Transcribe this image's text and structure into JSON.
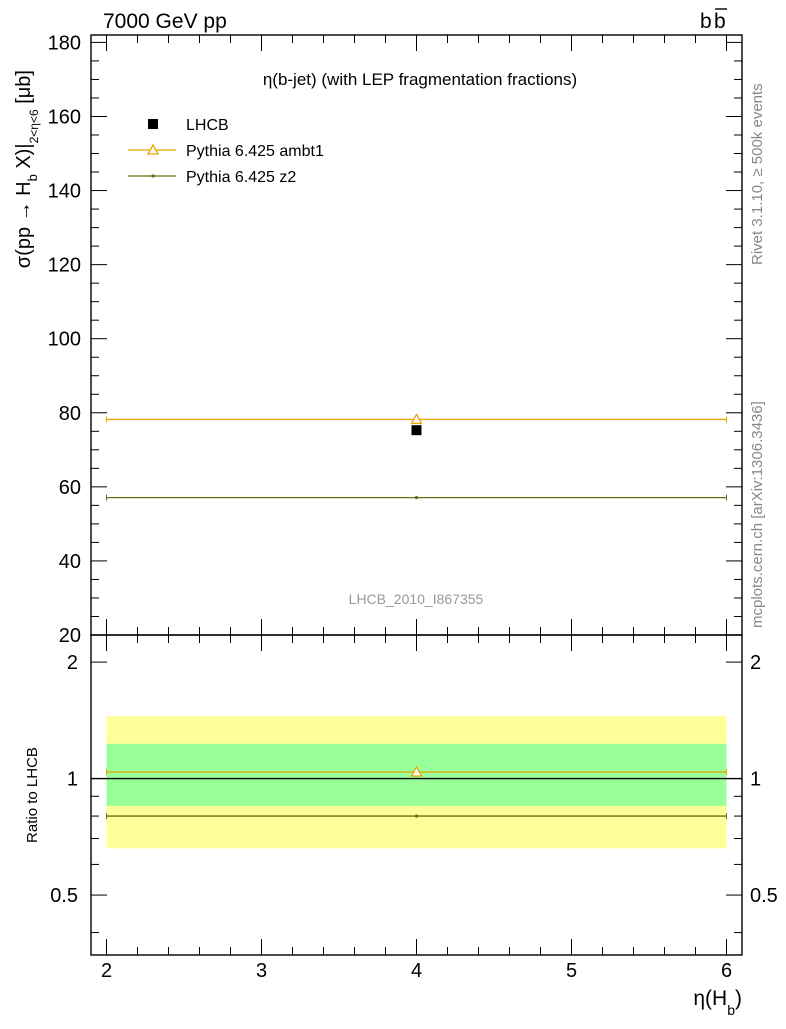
{
  "header": {
    "left": "7000 GeV pp",
    "right": "b",
    "right_bar": "b"
  },
  "side_text": {
    "top": "Rivet 3.1.10, ≥ 500k events",
    "bottom": "mcplots.cern.ch [arXiv:1306.3436]"
  },
  "watermark": "LHCB_2010_I867355",
  "colors": {
    "data": "#000000",
    "ambt1": "#e8a400",
    "z2": "#6b6b18",
    "band_inner": "#99ff99",
    "band_outer": "#ffff99"
  },
  "chart_data": [
    {
      "type": "scatter",
      "panel": "main",
      "title": "η(b-jet) (with LEP fragmentation fractions)",
      "ylabel": {
        "main": "σ(pp → H",
        "sub_b": "b",
        "mid": " X)|",
        "sub_range": "2<η<6",
        "unit": " [μb]"
      },
      "xlim": [
        1.9,
        6.1
      ],
      "ylim": [
        20,
        182
      ],
      "yticks": [
        "20",
        "40",
        "60",
        "80",
        "100",
        "120",
        "140",
        "160",
        "180"
      ],
      "legend_position": "top-left",
      "series": [
        {
          "name": "LHCB",
          "marker": "square",
          "x": [
            4
          ],
          "y": [
            75.3
          ],
          "xerr": [
            2
          ],
          "yerr": [
            0
          ]
        },
        {
          "name": "Pythia 6.425 ambt1",
          "marker": "triangle",
          "x": [
            4
          ],
          "y": [
            78.2
          ],
          "xerr": [
            2
          ]
        },
        {
          "name": "Pythia 6.425 z2",
          "marker": "dot",
          "x": [
            4
          ],
          "y": [
            57.1
          ],
          "xerr": [
            2
          ]
        }
      ]
    },
    {
      "type": "scatter",
      "panel": "ratio",
      "ylabel": "Ratio to LHCB",
      "xlabel": {
        "main": "η(H",
        "sub": "b",
        "close": ")"
      },
      "xlim": [
        1.9,
        6.1
      ],
      "ylim": [
        0.35,
        2.35
      ],
      "scale": "log",
      "xticks": [
        "2",
        "3",
        "4",
        "5",
        "6"
      ],
      "yticks": [
        "0.5",
        "1",
        "2"
      ],
      "band_inner": [
        0.85,
        1.23
      ],
      "band_outer": [
        0.66,
        1.45
      ],
      "series": [
        {
          "name": "Pythia 6.425 ambt1",
          "x": [
            4
          ],
          "y": [
            1.04
          ],
          "xerr": [
            2
          ]
        },
        {
          "name": "Pythia 6.425 z2",
          "x": [
            4
          ],
          "y": [
            0.8
          ],
          "xerr": [
            2
          ]
        }
      ]
    }
  ]
}
